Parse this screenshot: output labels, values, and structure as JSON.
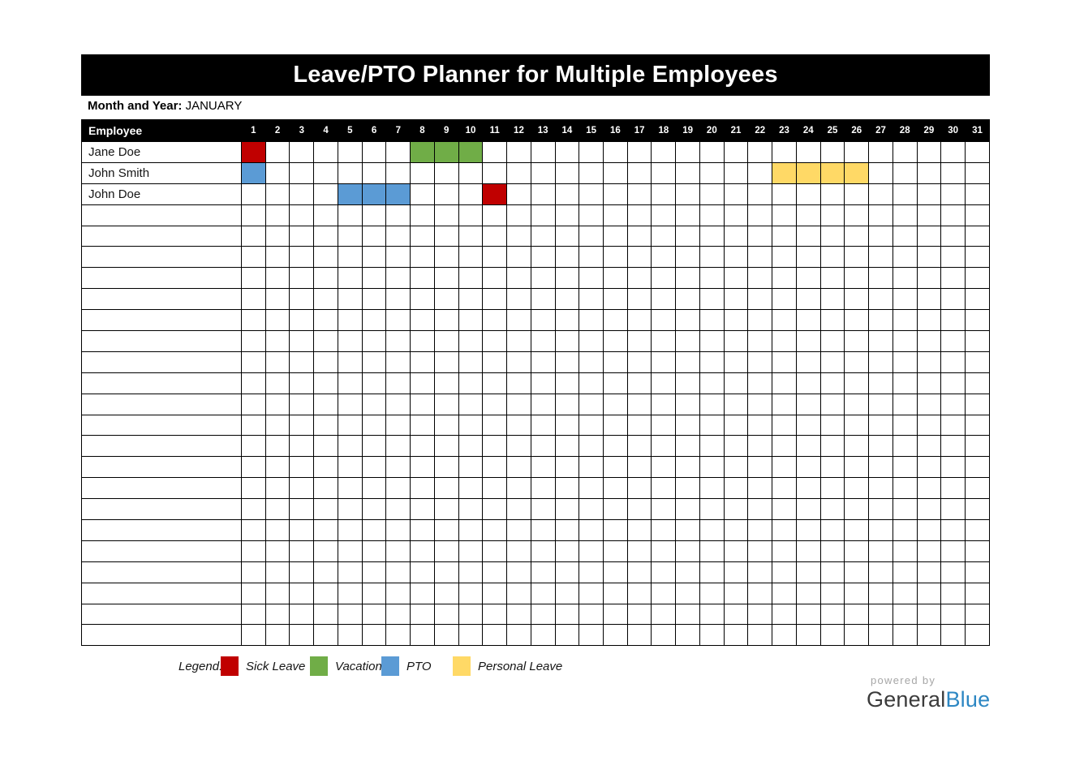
{
  "title": "Leave/PTO Planner for Multiple Employees",
  "month": {
    "label": "Month and Year:",
    "value": "JANUARY"
  },
  "table": {
    "employee_header": "Employee",
    "days": [
      "1",
      "2",
      "3",
      "4",
      "5",
      "6",
      "7",
      "8",
      "9",
      "10",
      "11",
      "12",
      "13",
      "14",
      "15",
      "16",
      "17",
      "18",
      "19",
      "20",
      "21",
      "22",
      "23",
      "24",
      "25",
      "26",
      "27",
      "28",
      "29",
      "30",
      "31"
    ],
    "employees": [
      {
        "name": "Jane Doe",
        "leaves": {
          "sick": [
            1
          ],
          "vacation": [
            8,
            9,
            10
          ]
        }
      },
      {
        "name": "John Smith",
        "leaves": {
          "pto": [
            1
          ],
          "personal": [
            23,
            24,
            25,
            26
          ]
        }
      },
      {
        "name": "John Doe",
        "leaves": {
          "pto": [
            5,
            6,
            7
          ],
          "sick": [
            11
          ]
        }
      }
    ],
    "empty_row_count": 21
  },
  "leave_colors": {
    "sick": "#c00000",
    "vacation": "#70ad47",
    "pto": "#5b9bd5",
    "personal": "#ffd966"
  },
  "legend": {
    "label": "Legend:",
    "items": [
      {
        "type": "sick",
        "label": "Sick Leave",
        "color": "#c00000"
      },
      {
        "type": "vacation",
        "label": "Vacation",
        "color": "#70ad47"
      },
      {
        "type": "pto",
        "label": "PTO",
        "color": "#5b9bd5"
      },
      {
        "type": "personal",
        "label": "Personal Leave",
        "color": "#ffd966"
      }
    ]
  },
  "footer": {
    "powered_by": "powered by",
    "brand_general": "General",
    "brand_blue": "Blue",
    "brand_blue_color": "#2d87c3"
  }
}
